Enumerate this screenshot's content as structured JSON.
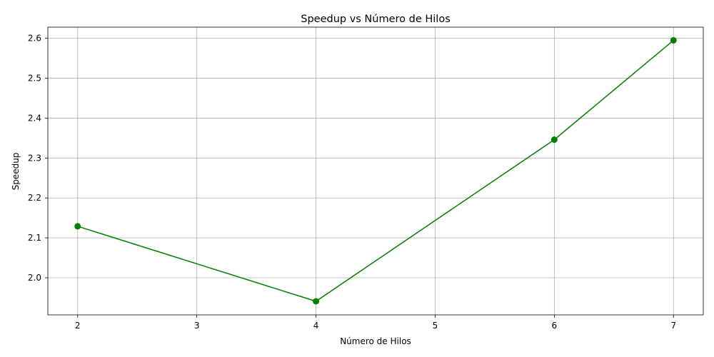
{
  "chart_data": {
    "type": "line",
    "title": "Speedup vs Número de Hilos",
    "xlabel": "Número de Hilos",
    "ylabel": "Speedup",
    "x": [
      2,
      4,
      6,
      7
    ],
    "series": [
      {
        "values": [
          2.129,
          1.941,
          2.346,
          2.595
        ],
        "color": "#008000",
        "marker": "circle"
      }
    ],
    "xlim": [
      1.75,
      7.25
    ],
    "ylim": [
      1.907,
      2.628
    ],
    "xticks": [
      2,
      3,
      4,
      5,
      6,
      7
    ],
    "xtick_labels": [
      "2",
      "3",
      "4",
      "5",
      "6",
      "7"
    ],
    "yticks": [
      2.0,
      2.1,
      2.2,
      2.3,
      2.4,
      2.5,
      2.6
    ],
    "ytick_labels": [
      "2.0",
      "2.1",
      "2.2",
      "2.3",
      "2.4",
      "2.5",
      "2.6"
    ],
    "grid": true,
    "colors": {
      "line": "#008000",
      "grid": "#b0b0b0",
      "axes": "#000000"
    }
  }
}
